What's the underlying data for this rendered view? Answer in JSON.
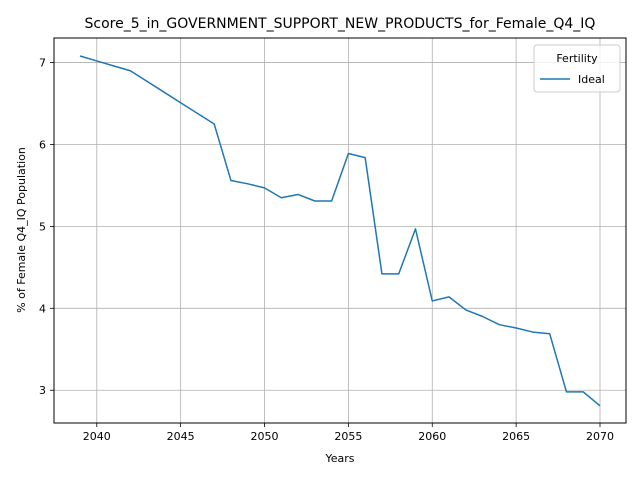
{
  "chart_data": {
    "type": "line",
    "title": "Score_5_in_GOVERNMENT_SUPPORT_NEW_PRODUCTS_for_Female_Q4_IQ",
    "xlabel": "Years",
    "ylabel": "% of Female Q4_IQ Population",
    "xlim": [
      2037.45,
      2071.55
    ],
    "ylim": [
      2.6,
      7.3
    ],
    "xticks": [
      2040,
      2045,
      2050,
      2055,
      2060,
      2065,
      2070
    ],
    "yticks": [
      3,
      4,
      5,
      6,
      7
    ],
    "grid": true,
    "legend": {
      "title": "Fertility",
      "position": "top-right"
    },
    "series": [
      {
        "name": "Ideal",
        "color": "#1f77b4",
        "x": [
          2039,
          2040,
          2041,
          2042,
          2043,
          2044,
          2045,
          2046,
          2047,
          2048,
          2049,
          2050,
          2051,
          2052,
          2053,
          2054,
          2055,
          2056,
          2057,
          2058,
          2059,
          2060,
          2061,
          2062,
          2063,
          2064,
          2065,
          2066,
          2067,
          2068,
          2069,
          2070
        ],
        "y": [
          7.08,
          7.02,
          6.96,
          6.9,
          6.77,
          6.64,
          6.51,
          6.38,
          6.25,
          5.56,
          5.52,
          5.47,
          5.35,
          5.39,
          5.31,
          5.31,
          5.89,
          5.84,
          4.42,
          4.42,
          4.97,
          4.09,
          4.14,
          3.98,
          3.9,
          3.8,
          3.76,
          3.71,
          3.69,
          2.98,
          2.98,
          2.81
        ]
      }
    ]
  }
}
